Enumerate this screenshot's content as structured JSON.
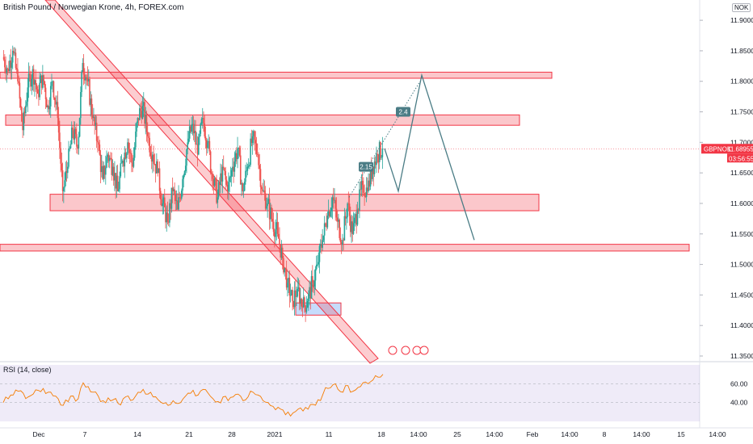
{
  "header": {
    "title": "British Pound / Norwegian Krone, 4h, FOREX.com",
    "currency_badge": "NOK"
  },
  "price_tag": {
    "symbol": "GBPNOK",
    "price": "11.68955",
    "countdown": "03:56:55",
    "color": "#f23645"
  },
  "rsi": {
    "title": "RSI (14, close)",
    "levels": [
      "60.00",
      "40.00"
    ]
  },
  "chart_data": {
    "type": "candlestick",
    "ylim": [
      11.35,
      11.92
    ],
    "y_ticks": [
      "11.90000",
      "11.85000",
      "11.80000",
      "11.75000",
      "11.70000",
      "11.65000",
      "11.60000",
      "11.55000",
      "11.50000",
      "11.45000",
      "11.40000",
      "11.35000"
    ],
    "x_ticks": [
      "Dec",
      "7",
      "14",
      "21",
      "28",
      "2021",
      "11",
      "18",
      "14:00",
      "25",
      "14:00",
      "Feb",
      "14:00",
      "8",
      "14:00",
      "15",
      "14:00"
    ],
    "last_price": 11.68955,
    "price_path": [
      11.84,
      11.82,
      11.85,
      11.8,
      11.72,
      11.79,
      11.82,
      11.78,
      11.81,
      11.76,
      11.8,
      11.74,
      11.62,
      11.66,
      11.72,
      11.69,
      11.83,
      11.8,
      11.74,
      11.7,
      11.64,
      11.68,
      11.66,
      11.62,
      11.67,
      11.7,
      11.66,
      11.74,
      11.76,
      11.71,
      11.68,
      11.65,
      11.6,
      11.57,
      11.62,
      11.59,
      11.64,
      11.7,
      11.73,
      11.68,
      11.74,
      11.7,
      11.64,
      11.61,
      11.66,
      11.62,
      11.66,
      11.69,
      11.62,
      11.66,
      11.71,
      11.68,
      11.62,
      11.6,
      11.57,
      11.55,
      11.51,
      11.47,
      11.44,
      11.46,
      11.43,
      11.44,
      11.47,
      11.5,
      11.54,
      11.58,
      11.61,
      11.57,
      11.54,
      11.6,
      11.55,
      11.59,
      11.63,
      11.62,
      11.66,
      11.68,
      11.69
    ],
    "zones": [
      {
        "top": 11.815,
        "bottom": 11.805
      },
      {
        "top": 11.745,
        "bottom": 11.728
      },
      {
        "top": 11.615,
        "bottom": 11.588
      },
      {
        "top": 11.533,
        "bottom": 11.522
      }
    ],
    "support_box": {
      "top": 11.437,
      "bottom": 11.417
    },
    "projection_path": [
      11.69,
      11.62,
      11.81,
      11.54
    ],
    "projection_labels": [
      {
        "text": "2.15",
        "price": 11.66
      },
      {
        "text": "2.4",
        "price": 11.75
      }
    ],
    "rsi_levels": [
      60,
      40
    ],
    "rsi_values": [
      40,
      44,
      48,
      52,
      50,
      46,
      49,
      53,
      55,
      51,
      47,
      44,
      37,
      41,
      47,
      44,
      61,
      57,
      51,
      47,
      42,
      45,
      43,
      39,
      44,
      47,
      43,
      51,
      54,
      49,
      46,
      43,
      39,
      37,
      42,
      39,
      44,
      50,
      53,
      48,
      54,
      50,
      44,
      41,
      46,
      42,
      46,
      49,
      42,
      46,
      51,
      48,
      42,
      40,
      36,
      35,
      32,
      30,
      29,
      33,
      31,
      33,
      38,
      43,
      49,
      55,
      59,
      54,
      51,
      58,
      52,
      56,
      61,
      60,
      64,
      67,
      70
    ]
  }
}
